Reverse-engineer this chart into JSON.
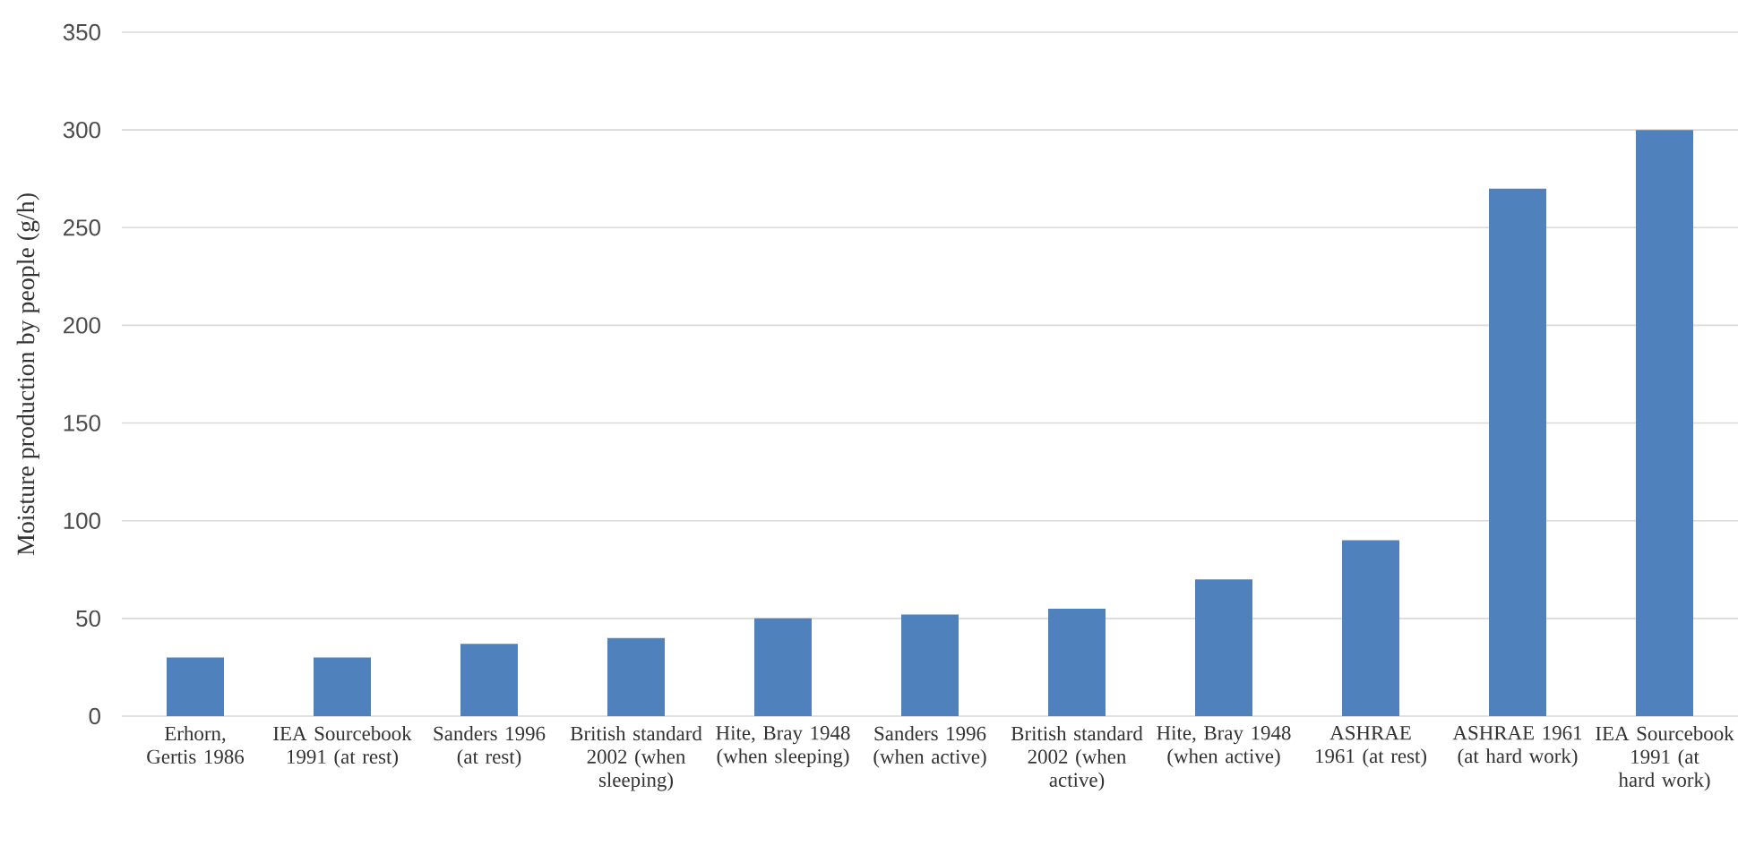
{
  "chart_data": {
    "type": "bar",
    "ylabel": "Moisture production by people (g/h)",
    "categories": [
      "Erhorn, Gertis 1986",
      "IEA Sourcebook 1991 (at rest)",
      "Sanders 1996 (at rest)",
      "British standard 2002 (when sleeping)",
      "Hite, Bray 1948 (when sleeping)",
      "Sanders 1996 (when active)",
      "British standard 2002 (when active)",
      "Hite, Bray 1948 (when active)",
      "ASHRAE 1961 (at rest)",
      "ASHRAE 1961 (at hard work)",
      "IEA Sourcebook 1991 (at hard work)"
    ],
    "values": [
      30,
      30,
      37,
      40,
      50,
      52,
      55,
      70,
      90,
      270,
      300
    ],
    "color": "#4f81bd",
    "ylim": [
      0,
      350
    ],
    "yticks": [
      0,
      50,
      100,
      150,
      200,
      250,
      300,
      350
    ],
    "grid": "y"
  }
}
